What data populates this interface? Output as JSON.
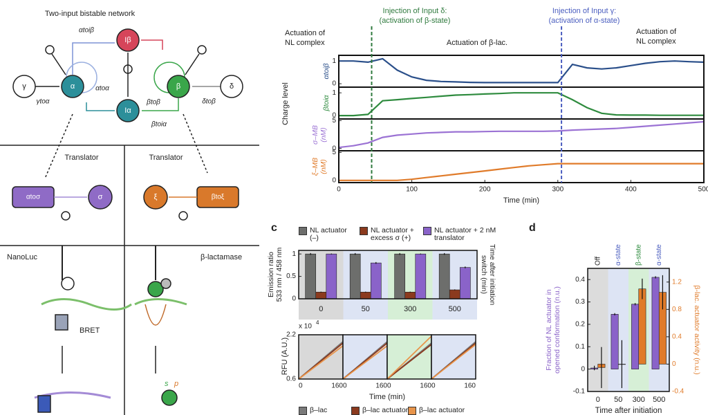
{
  "panel_a": {
    "title": "Two-input bistable network",
    "nodes": [
      "γ",
      "α",
      "Iβ",
      "β",
      "δ",
      "Iα"
    ],
    "edges": [
      "γtoα",
      "αtoiβ",
      "αtoα",
      "βtoβ",
      "δtoβ",
      "βtoiα"
    ],
    "translators": [
      "Translator",
      "Translator"
    ],
    "modules": [
      "αtoσ",
      "σ",
      "ξ",
      "βtoξ"
    ],
    "outputs": [
      "NanoLuc",
      "β-lactamase"
    ],
    "bret": "BRET",
    "substrate": [
      "s",
      "p"
    ]
  },
  "panel_b": {
    "annotations": [
      "Injection of Input δ:",
      "(activation of β-state)",
      "Injection of Input γ:",
      "(activation of α-state)",
      "Actuation of",
      "NL complex",
      "Actuation of β-lac.",
      "Actuation of",
      "NL complex"
    ],
    "y_label": "Charge level",
    "vlines": [
      45,
      305
    ],
    "vline_colors": [
      "#2f7a3e",
      "#4a5dbf"
    ]
  },
  "panel_c": {
    "label": "c",
    "rfu_scale": [
      "x 10",
      "4"
    ],
    "rfu_ylabel": "RFU (A.U.)",
    "rfu_xlabel": "Time (min)"
  },
  "panel_d": {
    "label": "d"
  },
  "chart_data": [
    {
      "type": "line",
      "ylabel": "αtoiβ",
      "x": [
        0,
        20,
        40,
        60,
        80,
        100,
        120,
        140,
        160,
        180,
        200,
        220,
        240,
        260,
        280,
        300,
        320,
        340,
        360,
        380,
        400,
        420,
        440,
        460,
        480,
        500
      ],
      "xlim": [
        0,
        500
      ],
      "ylim": [
        -0.15,
        1.25
      ],
      "yticks": [
        0,
        1
      ],
      "series": [
        {
          "color": "#2a4f8a",
          "values": [
            1.0,
            1.0,
            0.95,
            1.1,
            0.6,
            0.3,
            0.15,
            0.1,
            0.08,
            0.06,
            0.05,
            0.05,
            0.05,
            0.05,
            0.05,
            0.05,
            0.85,
            0.7,
            0.65,
            0.7,
            0.8,
            0.9,
            0.97,
            1.0,
            0.97,
            0.95
          ]
        }
      ]
    },
    {
      "type": "line",
      "ylabel": "βtoiα",
      "x": [
        0,
        20,
        40,
        60,
        80,
        100,
        120,
        140,
        160,
        180,
        200,
        220,
        240,
        260,
        280,
        300,
        320,
        340,
        360,
        380,
        400,
        420,
        440,
        460,
        480,
        500
      ],
      "xlim": [
        0,
        500
      ],
      "ylim": [
        -0.15,
        1.25
      ],
      "yticks": [
        0,
        1
      ],
      "series": [
        {
          "color": "#2e8b3e",
          "values": [
            0,
            0,
            0.05,
            0.65,
            0.7,
            0.75,
            0.8,
            0.85,
            0.9,
            0.92,
            0.95,
            0.97,
            1.0,
            1.0,
            1.0,
            1.0,
            0.7,
            0.35,
            0.1,
            0.03,
            0.02,
            0.02,
            0.01,
            0.01,
            0.01,
            0.01
          ]
        }
      ]
    },
    {
      "type": "line",
      "ylabel": [
        "σ–MB",
        "(nM)"
      ],
      "x": [
        0,
        20,
        40,
        60,
        80,
        100,
        120,
        140,
        160,
        180,
        200,
        220,
        240,
        260,
        280,
        300,
        320,
        340,
        360,
        380,
        400,
        420,
        440,
        460,
        480,
        500
      ],
      "xlim": [
        0,
        500
      ],
      "ylim": [
        -0.4,
        5.3
      ],
      "yticks": [
        0,
        5
      ],
      "series": [
        {
          "color": "#9b72d4",
          "values": [
            0.2,
            0.5,
            1.0,
            2.0,
            2.4,
            2.6,
            2.8,
            2.9,
            3.0,
            3.0,
            3.05,
            3.1,
            3.1,
            3.1,
            3.1,
            3.15,
            3.3,
            3.4,
            3.5,
            3.6,
            3.8,
            4.0,
            4.2,
            4.4,
            4.6,
            4.8
          ]
        }
      ]
    },
    {
      "type": "line",
      "ylabel": [
        "ξ–MB",
        "(nM)"
      ],
      "xlabel": "Time (min)",
      "x": [
        0,
        20,
        40,
        60,
        80,
        100,
        120,
        140,
        160,
        180,
        200,
        220,
        240,
        260,
        280,
        300,
        320,
        340,
        360,
        380,
        400,
        420,
        440,
        460,
        480,
        500
      ],
      "xlim": [
        0,
        500
      ],
      "xticks": [
        0,
        100,
        200,
        300,
        400,
        500
      ],
      "ylim": [
        -0.4,
        5.3
      ],
      "yticks": [
        0,
        5
      ],
      "series": [
        {
          "color": "#e07b2a",
          "values": [
            0,
            0,
            0,
            0,
            0,
            0.2,
            0.5,
            0.8,
            1.1,
            1.4,
            1.7,
            2.0,
            2.3,
            2.6,
            2.8,
            3.0,
            3.0,
            3.0,
            3.0,
            3.0,
            3.0,
            3.0,
            3.0,
            3.0,
            3.0,
            3.0
          ]
        }
      ]
    },
    {
      "type": "bar",
      "ylabel": [
        "Emission ratio",
        "533 nm / 458 nm"
      ],
      "right_label": [
        "Time after initiation",
        "switch (min)"
      ],
      "categories": [
        "0",
        "50",
        "300",
        "500"
      ],
      "band_colors": [
        "#d9d9d9",
        "#dde4f4",
        "#d6efd6",
        "#dde4f4"
      ],
      "ylim": [
        0,
        1.08
      ],
      "yticks": [
        0,
        0.5,
        1
      ],
      "series": [
        {
          "name": "NL actuator (–)",
          "color": "#6d6e6c",
          "values": [
            1,
            1,
            1,
            1
          ],
          "errors": [
            0.02,
            0.02,
            0.02,
            0.02
          ]
        },
        {
          "name": "NL actuator + excess σ (+)",
          "color": "#8b3a1e",
          "values": [
            0.15,
            0.15,
            0.15,
            0.2
          ],
          "errors": [
            0.01,
            0.01,
            0.01,
            0.01
          ]
        },
        {
          "name": "NL actuator + 2 nM translator",
          "color": "#8a63c9",
          "values": [
            1,
            0.8,
            1,
            0.7
          ],
          "errors": [
            0.01,
            0.02,
            0.01,
            0.02
          ]
        }
      ]
    },
    {
      "type": "line",
      "x": [
        0,
        160
      ],
      "xlim": [
        0,
        160
      ],
      "xticks": [
        0,
        160
      ],
      "ylim": [
        0.6,
        2.2
      ],
      "yticks": [
        0.6,
        2.2
      ],
      "band_color": "#d9d9d9",
      "series": [
        {
          "name": "β–lac",
          "color": "#7a7a7a",
          "values": [
            0.6,
            1.95
          ]
        },
        {
          "name": "β–lac actuator",
          "color": "#8b3a1e",
          "values": [
            0.6,
            1.9
          ]
        },
        {
          "name": "β–lac actuator",
          "color": "#e8944a",
          "values": [
            0.6,
            1.8
          ]
        }
      ]
    },
    {
      "type": "line",
      "x": [
        0,
        160
      ],
      "xlim": [
        0,
        160
      ],
      "xticks": [
        0,
        160
      ],
      "ylim": [
        0.6,
        2.2
      ],
      "band_color": "#dde4f4",
      "series": [
        {
          "color": "#7a7a7a",
          "values": [
            0.6,
            1.95
          ]
        },
        {
          "color": "#8b3a1e",
          "values": [
            0.6,
            1.9
          ]
        },
        {
          "color": "#e8944a",
          "values": [
            0.6,
            1.8
          ]
        }
      ]
    },
    {
      "type": "line",
      "x": [
        0,
        160
      ],
      "xlim": [
        0,
        160
      ],
      "xticks": [
        0,
        160
      ],
      "ylim": [
        0.6,
        2.2
      ],
      "band_color": "#d6efd6",
      "series": [
        {
          "color": "#7a7a7a",
          "values": [
            0.6,
            1.9
          ]
        },
        {
          "color": "#8b3a1e",
          "values": [
            0.6,
            1.85
          ]
        },
        {
          "color": "#e8944a",
          "values": [
            0.6,
            2.15
          ]
        }
      ]
    },
    {
      "type": "line",
      "x": [
        0,
        160
      ],
      "xlim": [
        0,
        160
      ],
      "xticks": [
        0,
        160
      ],
      "ylim": [
        0.6,
        2.2
      ],
      "band_color": "#dde4f4",
      "series": [
        {
          "color": "#7a7a7a",
          "values": [
            0.6,
            1.95
          ]
        },
        {
          "color": "#8b3a1e",
          "values": [
            0.6,
            1.9
          ]
        },
        {
          "color": "#e8944a",
          "values": [
            0.6,
            1.85
          ]
        }
      ]
    },
    {
      "type": "bar",
      "ylabel": [
        "Fraction of NL actuator in",
        "opened conformation (n.u.)"
      ],
      "y2label": [
        "β-lac. actuator activity (n.u.)"
      ],
      "xlabel": [
        "Time after initiation",
        "switch (min)"
      ],
      "categories": [
        "0",
        "50",
        "300",
        "500"
      ],
      "category_annotations": [
        "Off",
        "α-state",
        "β-state",
        "α-state"
      ],
      "annotation_colors": [
        "#222222",
        "#4a5dbf",
        "#2e8b3e",
        "#4a5dbf"
      ],
      "band_colors": [
        "#dcdcdc",
        "#dde4f4",
        "#d6efd6",
        "#dde4f4"
      ],
      "ylim": [
        -0.1,
        0.45
      ],
      "yticks": [
        -0.1,
        0,
        0.1,
        0.2,
        0.3,
        0.4
      ],
      "y2lim": [
        -0.4,
        1.4
      ],
      "y2ticks": [
        -0.4,
        0,
        0.4,
        0.8,
        1.2
      ],
      "series": [
        {
          "color": "#8a63c9",
          "values": [
            0.005,
            0.245,
            0.29,
            0.41
          ],
          "errors": [
            0.01,
            0.005,
            0.005,
            0.005
          ]
        },
        {
          "color": "#e07b2a",
          "axis": "y2",
          "values": [
            -0.05,
            0.0,
            1.1,
            1.05
          ],
          "errors": [
            0.3,
            0.35,
            0.15,
            0.25
          ]
        }
      ]
    }
  ]
}
